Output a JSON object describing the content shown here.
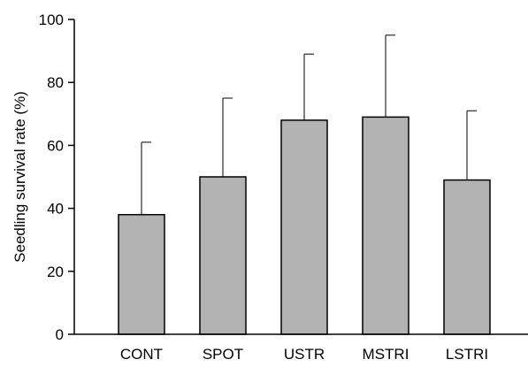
{
  "chart_data": {
    "type": "bar",
    "title": "",
    "xlabel": "",
    "ylabel": "Seedling survival rate (%)",
    "ylim": [
      0,
      100
    ],
    "yticks": [
      0,
      20,
      40,
      60,
      80,
      100
    ],
    "categories": [
      "CONT",
      "SPOT",
      "USTR",
      "MSTRI",
      "LSTRI"
    ],
    "values": [
      38,
      50,
      68,
      69,
      49
    ],
    "error_upper": [
      23,
      25,
      21,
      26,
      22
    ],
    "grid": false,
    "bar_color": "#b3b3b3",
    "error_bar_style": "upper-only"
  }
}
